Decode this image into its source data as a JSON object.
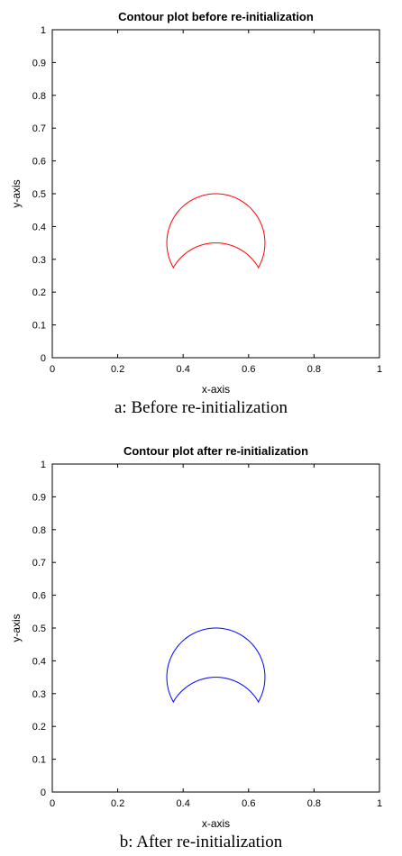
{
  "chart_data": [
    {
      "type": "line",
      "subtype": "contour",
      "title": "Contour plot before re-initialization",
      "xlabel": "x-axis",
      "ylabel": "y-axis",
      "xlim": [
        0,
        1
      ],
      "ylim": [
        0,
        1
      ],
      "xticks": [
        "0",
        "0.2",
        "0.4",
        "0.6",
        "0.8",
        "1"
      ],
      "yticks": [
        "0",
        "0.1",
        "0.2",
        "0.3",
        "0.4",
        "0.5",
        "0.6",
        "0.7",
        "0.8",
        "0.9",
        "1"
      ],
      "grid": false,
      "color": "#ff0000",
      "contour_shape": {
        "outer_arc": {
          "cx": 0.5,
          "cy": 0.35,
          "r": 0.15
        },
        "inner_arc": {
          "cx": 0.5,
          "cy": 0.2,
          "r": 0.15
        },
        "corners": [
          [
            0.37,
            0.275
          ],
          [
            0.63,
            0.275
          ]
        ]
      }
    },
    {
      "type": "line",
      "subtype": "contour",
      "title": "Contour plot after re-initialization",
      "xlabel": "x-axis",
      "ylabel": "y-axis",
      "xlim": [
        0,
        1
      ],
      "ylim": [
        0,
        1
      ],
      "xticks": [
        "0",
        "0.2",
        "0.4",
        "0.6",
        "0.8",
        "1"
      ],
      "yticks": [
        "0",
        "0.1",
        "0.2",
        "0.3",
        "0.4",
        "0.5",
        "0.6",
        "0.7",
        "0.8",
        "0.9",
        "1"
      ],
      "grid": false,
      "color": "#0000ff",
      "contour_shape": {
        "outer_arc": {
          "cx": 0.5,
          "cy": 0.35,
          "r": 0.15
        },
        "inner_arc": {
          "cx": 0.5,
          "cy": 0.2,
          "r": 0.15
        },
        "corners": [
          [
            0.37,
            0.275
          ],
          [
            0.63,
            0.275
          ]
        ]
      }
    }
  ],
  "captions": {
    "a": "a: Before re-initialization",
    "b": "b: After re-initialization"
  }
}
